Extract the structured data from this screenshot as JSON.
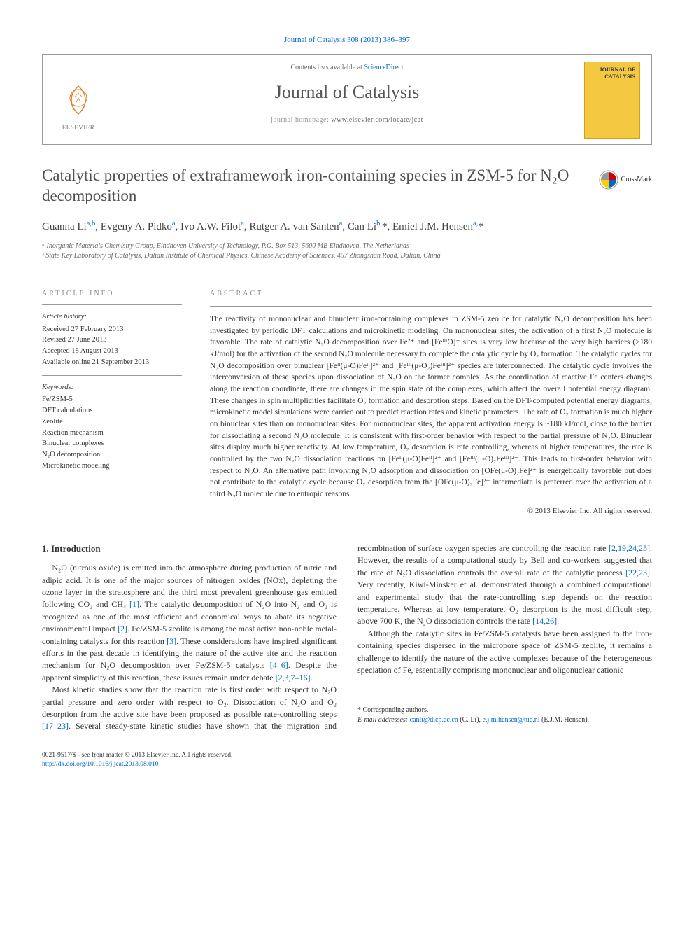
{
  "journal_ref": "Journal of Catalysis 308 (2013) 386–397",
  "header": {
    "contents_prefix": "Contents lists available at ",
    "contents_link": "ScienceDirect",
    "journal_name": "Journal of Catalysis",
    "homepage_label": "journal homepage: ",
    "homepage_url": "www.elsevier.com/locate/jcat",
    "elsevier_text": "ELSEVIER",
    "cover_title": "JOURNAL OF CATALYSIS"
  },
  "crossmark_label": "CrossMark",
  "title": "Catalytic properties of extraframework iron-containing species in ZSM-5 for N₂O decomposition",
  "authors_html": "Guanna Li<sup>a,b</sup>, Evgeny A. Pidko<sup>a</sup>, Ivo A.W. Filot<sup>a</sup>, Rutger A. van Santen<sup>a</sup>, Can Li<sup>b,</sup><span class='star'>*</span>, Emiel J.M. Hensen<sup>a,</sup><span class='star'>*</span>",
  "affiliations": [
    "ᵃ Inorganic Materials Chemistry Group, Eindhoven University of Technology, P.O. Box 513, 5600 MB Eindhoven, The Netherlands",
    "ᵇ State Key Laboratory of Catalysis, Dalian Institute of Chemical Physics, Chinese Academy of Sciences, 457 Zhongshan Road, Dalian, China"
  ],
  "article_info": {
    "heading": "ARTICLE INFO",
    "history_label": "Article history:",
    "received": "Received 27 February 2013",
    "revised": "Revised 27 June 2013",
    "accepted": "Accepted 18 August 2013",
    "online": "Available online 21 September 2013",
    "keywords_label": "Keywords:",
    "keywords": [
      "Fe/ZSM-5",
      "DFT calculations",
      "Zeolite",
      "Reaction mechanism",
      "Binuclear complexes",
      "N₂O decomposition",
      "Microkinetic modeling"
    ]
  },
  "abstract": {
    "heading": "ABSTRACT",
    "text": "The reactivity of mononuclear and binuclear iron-containing complexes in ZSM-5 zeolite for catalytic N₂O decomposition has been investigated by periodic DFT calculations and microkinetic modeling. On mononuclear sites, the activation of a first N₂O molecule is favorable. The rate of catalytic N₂O decomposition over Fe²⁺ and [FeᴵᴵᴵO]⁺ sites is very low because of the very high barriers (>180 kJ/mol) for the activation of the second N₂O molecule necessary to complete the catalytic cycle by O₂ formation. The catalytic cycles for N₂O decomposition over binuclear [Feᴵᴵ(μ-O)Feᴵᴵ]²⁺ and [Feᴵᴵᴵ(μ-O₂)Feᴵᴵᴵ]²⁺ species are interconnected. The catalytic cycle involves the interconversion of these species upon dissociation of N₂O on the former complex. As the coordination of reactive Fe centers changes along the reaction coordinate, there are changes in the spin state of the complexes, which affect the overall potential energy diagram. These changes in spin multiplicities facilitate O₂ formation and desorption steps. Based on the DFT-computed potential energy diagrams, microkinetic model simulations were carried out to predict reaction rates and kinetic parameters. The rate of O₂ formation is much higher on binuclear sites than on mononuclear sites. For mononuclear sites, the apparent activation energy is ~180 kJ/mol, close to the barrier for dissociating a second N₂O molecule. It is consistent with first-order behavior with respect to the partial pressure of N₂O. Binuclear sites display much higher reactivity. At low temperature, O₂ desorption is rate controlling, whereas at higher temperatures, the rate is controlled by the two N₂O dissociation reactions on [Feᴵᴵ(μ-O)Feᴵᴵ]²⁺ and [Feᴵᴵᴵ(μ-O)₂Feᴵᴵᴵ]²⁺. This leads to first-order behavior with respect to N₂O. An alternative path involving N₂O adsorption and dissociation on [OFe(μ-O)₂Fe]²⁺ is energetically favorable but does not contribute to the catalytic cycle because O₂ desorption from the [OFe(μ-O)₂Fe]²⁺ intermediate is preferred over the activation of a third N₂O molecule due to entropic reasons.",
    "copyright": "© 2013 Elsevier Inc. All rights reserved."
  },
  "sections": {
    "intro_heading": "1. Introduction",
    "intro_p1": "N₂O (nitrous oxide) is emitted into the atmosphere during production of nitric and adipic acid. It is one of the major sources of nitrogen oxides (NOx), depleting the ozone layer in the stratosphere and the third most prevalent greenhouse gas emitted following CO₂ and CH₄ [1]. The catalytic decomposition of N₂O into N₂ and O₂ is recognized as one of the most efficient and economical ways to abate its negative environmental impact [2]. Fe/ZSM-5 zeolite is among the most active non-noble metal-containing catalysts for this reaction [3]. These considerations have inspired significant efforts in the past decade in identifying the nature of the active site and the reaction mechanism for N₂O decomposition over Fe/ZSM-5 catalysts [4–6]. Despite the apparent simplicity of this reaction, these issues remain under debate [2,3,7–16].",
    "intro_p2": "Most kinetic studies show that the reaction rate is first order with respect to N₂O partial pressure and zero order with respect to O₂. Dissociation of N₂O and O₂ desorption from the active site have been proposed as possible rate-controlling steps [17–23]. Several steady-state kinetic studies have shown that the migration and recombination of surface oxygen species are controlling the reaction rate [2,19,24,25]. However, the results of a computational study by Bell and co-workers suggested that the rate of N₂O dissociation controls the overall rate of the catalytic process [22,23]. Very recently, Kiwi-Minsker et al. demonstrated through a combined computational and experimental study that the rate-controlling step depends on the reaction temperature. Whereas at low temperature, O₂ desorption is the most difficult step, above 700 K, the N₂O dissociation controls the rate [14,26].",
    "intro_p3": "Although the catalytic sites in Fe/ZSM-5 catalysts have been assigned to the iron-containing species dispersed in the micropore space of ZSM-5 zeolite, it remains a challenge to identify the nature of the active complexes because of the heterogeneous speciation of Fe, essentially comprising mononuclear and oligonuclear cationic"
  },
  "footer": {
    "correspond_label": "* Corresponding authors.",
    "email_label": "E-mail addresses: ",
    "email1": "canli@dicp.ac.cn",
    "email1_name": " (C. Li), ",
    "email2": "e.j.m.hensen@tue.nl",
    "email2_name": " (E.J.M. Hensen)."
  },
  "bottom": {
    "line1": "0021-9517/$ - see front matter © 2013 Elsevier Inc. All rights reserved.",
    "doi": "http://dx.doi.org/10.1016/j.jcat.2013.08.010"
  },
  "colors": {
    "link": "#0066cc",
    "text": "#333333",
    "heading_gray": "#888888",
    "cover_bg": "#f5c842"
  }
}
